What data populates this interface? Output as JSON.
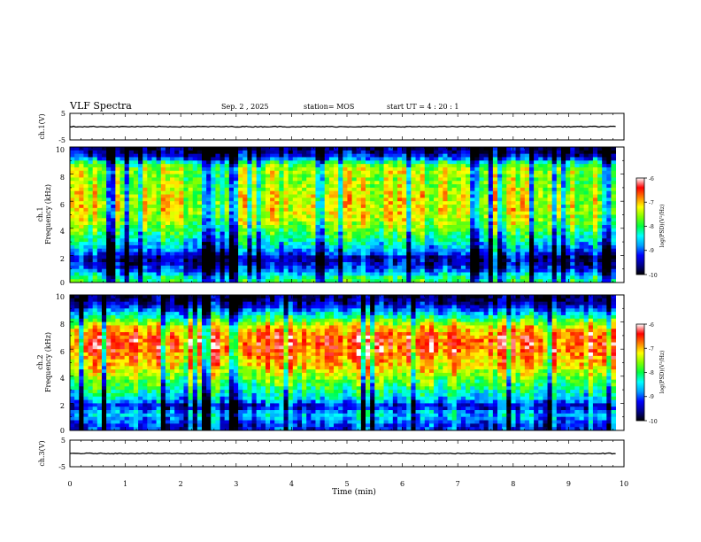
{
  "header": {
    "title": "VLF Spectra",
    "date": "Sep. 2 , 2025",
    "station": "station= MOS",
    "start": "start  UT =  4 : 20 : 1"
  },
  "chart_data": {
    "type": "heatmap",
    "xlabel": "Time  (min)",
    "xlim": [
      0,
      10
    ],
    "x_ticks": [
      "0",
      "1",
      "2",
      "3",
      "4",
      "5",
      "6",
      "7",
      "8",
      "9",
      "10"
    ],
    "data_end_min": 9.85,
    "waveform_panels": [
      {
        "id": "ch1-waveform",
        "ylabel": "ch.1(V)",
        "ylim": [
          -5,
          5
        ],
        "y_ticks": [
          "5",
          "-5"
        ],
        "level": 0
      },
      {
        "id": "ch3-waveform",
        "ylabel": "ch.3(V)",
        "ylim": [
          -5,
          5
        ],
        "y_ticks": [
          "5",
          "-5"
        ],
        "level": 0
      }
    ],
    "spectrogram_panels": [
      {
        "id": "ch1-spectrogram",
        "ylabel_channel": "ch.1",
        "ylabel": "Frequency  (kHz)",
        "ylim": [
          0,
          10
        ],
        "y_ticks": [
          "0",
          "2",
          "4",
          "6",
          "8",
          "10"
        ],
        "profile_khz": [
          0.25,
          0.75,
          1.25,
          1.75,
          2.25,
          2.75,
          3.25,
          3.75,
          4.25,
          4.75,
          5.25,
          5.75,
          6.25,
          6.75,
          7.25,
          7.75,
          8.25,
          8.75,
          9.25,
          9.75
        ],
        "profile_log_psd": [
          -8.0,
          -8.8,
          -9.3,
          -9.6,
          -8.9,
          -8.5,
          -8.2,
          -7.9,
          -7.6,
          -7.4,
          -7.3,
          -7.3,
          -7.3,
          -7.4,
          -7.5,
          -7.6,
          -7.4,
          -7.9,
          -9.2,
          -9.7
        ]
      },
      {
        "id": "ch2-spectrogram",
        "ylabel_channel": "ch.2",
        "ylabel": "Frequency  (kHz)",
        "ylim": [
          0,
          10
        ],
        "y_ticks": [
          "0",
          "2",
          "4",
          "6",
          "8",
          "10"
        ],
        "profile_khz": [
          0.25,
          0.75,
          1.25,
          1.75,
          2.25,
          2.75,
          3.25,
          3.75,
          4.25,
          4.75,
          5.25,
          5.75,
          6.25,
          6.75,
          7.25,
          7.75,
          8.25,
          8.75,
          9.25,
          9.75
        ],
        "profile_log_psd": [
          -9.2,
          -8.9,
          -8.6,
          -9.4,
          -8.6,
          -8.3,
          -8.0,
          -7.7,
          -7.4,
          -7.1,
          -6.9,
          -6.7,
          -6.6,
          -6.6,
          -6.8,
          -7.3,
          -8.0,
          -8.7,
          -9.4,
          -9.8
        ]
      }
    ],
    "colorbar": {
      "label": "log(PSD)(V²/Hz)",
      "range": [
        -10,
        -6
      ],
      "ticks": [
        "-6",
        "-7",
        "-8",
        "-9",
        "-10"
      ],
      "stops": [
        {
          "v": -10.0,
          "c": "#000000"
        },
        {
          "v": -9.6,
          "c": "#000090"
        },
        {
          "v": -9.2,
          "c": "#0000ff"
        },
        {
          "v": -8.8,
          "c": "#00a0ff"
        },
        {
          "v": -8.4,
          "c": "#00ffff"
        },
        {
          "v": -8.0,
          "c": "#00ff40"
        },
        {
          "v": -7.6,
          "c": "#80ff00"
        },
        {
          "v": -7.2,
          "c": "#ffff00"
        },
        {
          "v": -6.8,
          "c": "#ff8000"
        },
        {
          "v": -6.4,
          "c": "#ff0000"
        },
        {
          "v": -6.0,
          "c": "#ffffff"
        }
      ]
    }
  }
}
